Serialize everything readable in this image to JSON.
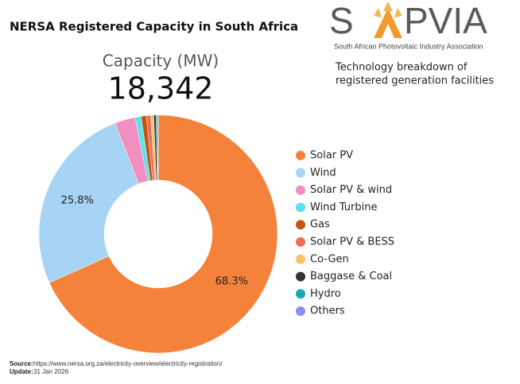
{
  "chart_data": {
    "type": "donut",
    "title": "NERSA Registered Capacity in South Africa",
    "logo": {
      "left": "S",
      "right": "PVIA",
      "tagline": "South African Photovoltaic Industry Association"
    },
    "subtitle_lines": [
      "Technology breakdown of",
      "registered generation facilities"
    ],
    "total_label": "Capacity (MW)",
    "total": "18,342",
    "categories": [
      "Solar PV",
      "Wind",
      "Solar PV & wind",
      "Wind Turbine",
      "Gas",
      "Solar PV & BESS",
      "Co-Gen",
      "Baggase & Coal",
      "Hydro",
      "Others"
    ],
    "values": [
      68.3,
      25.8,
      2.8,
      0.8,
      0.7,
      0.6,
      0.4,
      0.3,
      0.2,
      0.1
    ],
    "value_labels": [
      "68.3%",
      "25.8%",
      null,
      null,
      null,
      null,
      null,
      null,
      null,
      null
    ],
    "colors": [
      "#f4823a",
      "#a7d3f5",
      "#f08fc0",
      "#5de0ef",
      "#c0560f",
      "#ef6c5b",
      "#f5c26a",
      "#333333",
      "#1aa8b8",
      "#8a8ef0"
    ],
    "source_label": "Source:",
    "source": "https://www.nersa.org.za/electricity-overview/electricity-registration/",
    "update_label": "Update:",
    "update": "31 Jan 2026"
  }
}
